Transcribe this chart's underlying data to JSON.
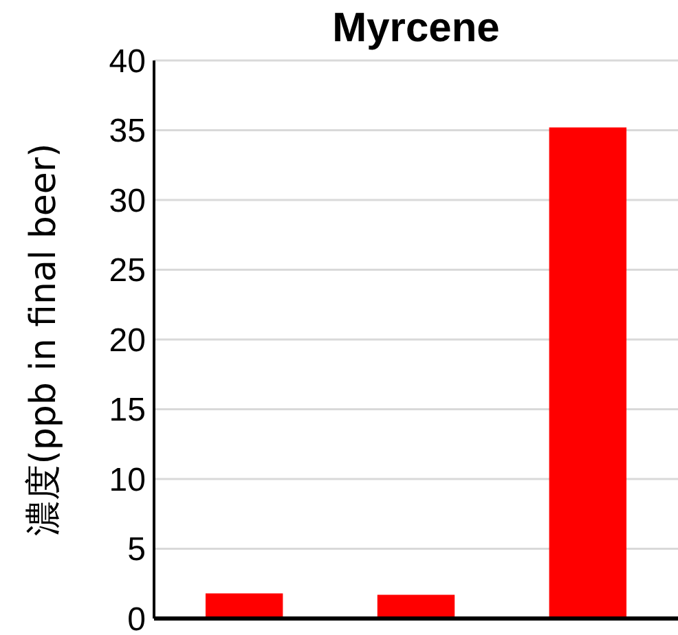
{
  "chart_data": {
    "type": "bar",
    "title": "Myrcene",
    "ylabel": "濃度(ppb in final beer)",
    "categories": [
      null,
      null,
      null
    ],
    "values": [
      1.8,
      1.7,
      35.2
    ],
    "color": "#ff0000",
    "ylim": [
      0,
      40
    ],
    "yticks": [
      0,
      5,
      10,
      15,
      20,
      25,
      30,
      35,
      40
    ],
    "grid": "y"
  }
}
